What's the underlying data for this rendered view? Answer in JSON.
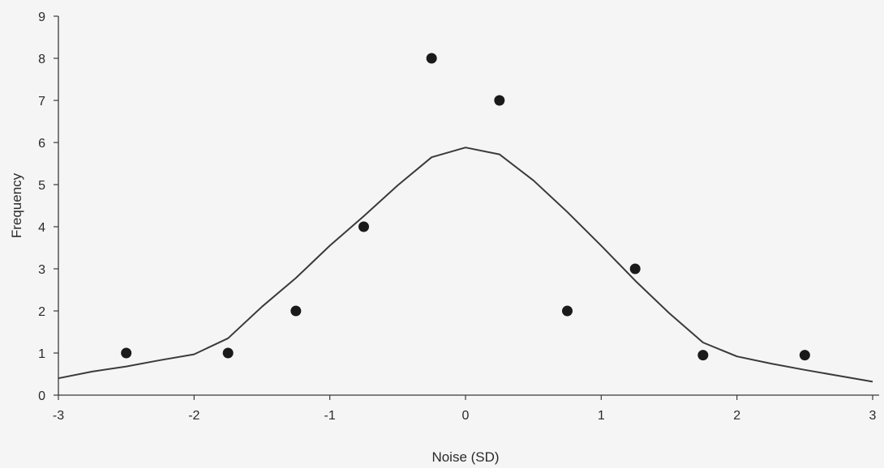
{
  "chart_data": {
    "type": "scatter",
    "xlabel": "Noise (SD)",
    "ylabel": "Frequency",
    "xlim": [
      -3,
      3
    ],
    "ylim": [
      0,
      9
    ],
    "x_ticks": [
      "-3",
      "-2",
      "-1",
      "0",
      "1",
      "2",
      "3"
    ],
    "y_ticks": [
      "0",
      "1",
      "2",
      "3",
      "4",
      "5",
      "6",
      "7",
      "8",
      "9"
    ],
    "grid": false,
    "legend": "none",
    "series": [
      {
        "type": "scatter",
        "x": [
          -2.5,
          -1.75,
          -1.25,
          -0.75,
          -0.25,
          0.25,
          0.75,
          1.25,
          1.75,
          2.5
        ],
        "y": [
          1,
          1,
          2,
          4,
          8,
          7,
          2,
          3,
          0.95,
          0.95
        ]
      },
      {
        "type": "line",
        "x": [
          -3.0,
          -2.75,
          -2.5,
          -2.25,
          -2.0,
          -1.75,
          -1.5,
          -1.25,
          -1.0,
          -0.75,
          -0.5,
          -0.25,
          0.0,
          0.25,
          0.5,
          0.75,
          1.0,
          1.25,
          1.5,
          1.75,
          2.0,
          2.25,
          2.5,
          2.75,
          3.0
        ],
        "y": [
          0.4,
          0.56,
          0.68,
          0.83,
          0.97,
          1.35,
          2.1,
          2.78,
          3.55,
          4.25,
          4.98,
          5.65,
          5.88,
          5.72,
          5.1,
          4.35,
          3.55,
          2.72,
          1.95,
          1.25,
          0.92,
          0.75,
          0.6,
          0.46,
          0.32
        ]
      }
    ],
    "colors": {
      "marker": "#1a1a1a",
      "line": "#3a3a3a",
      "axis": "#3a3a3a",
      "background": "#f5f5f5"
    }
  }
}
